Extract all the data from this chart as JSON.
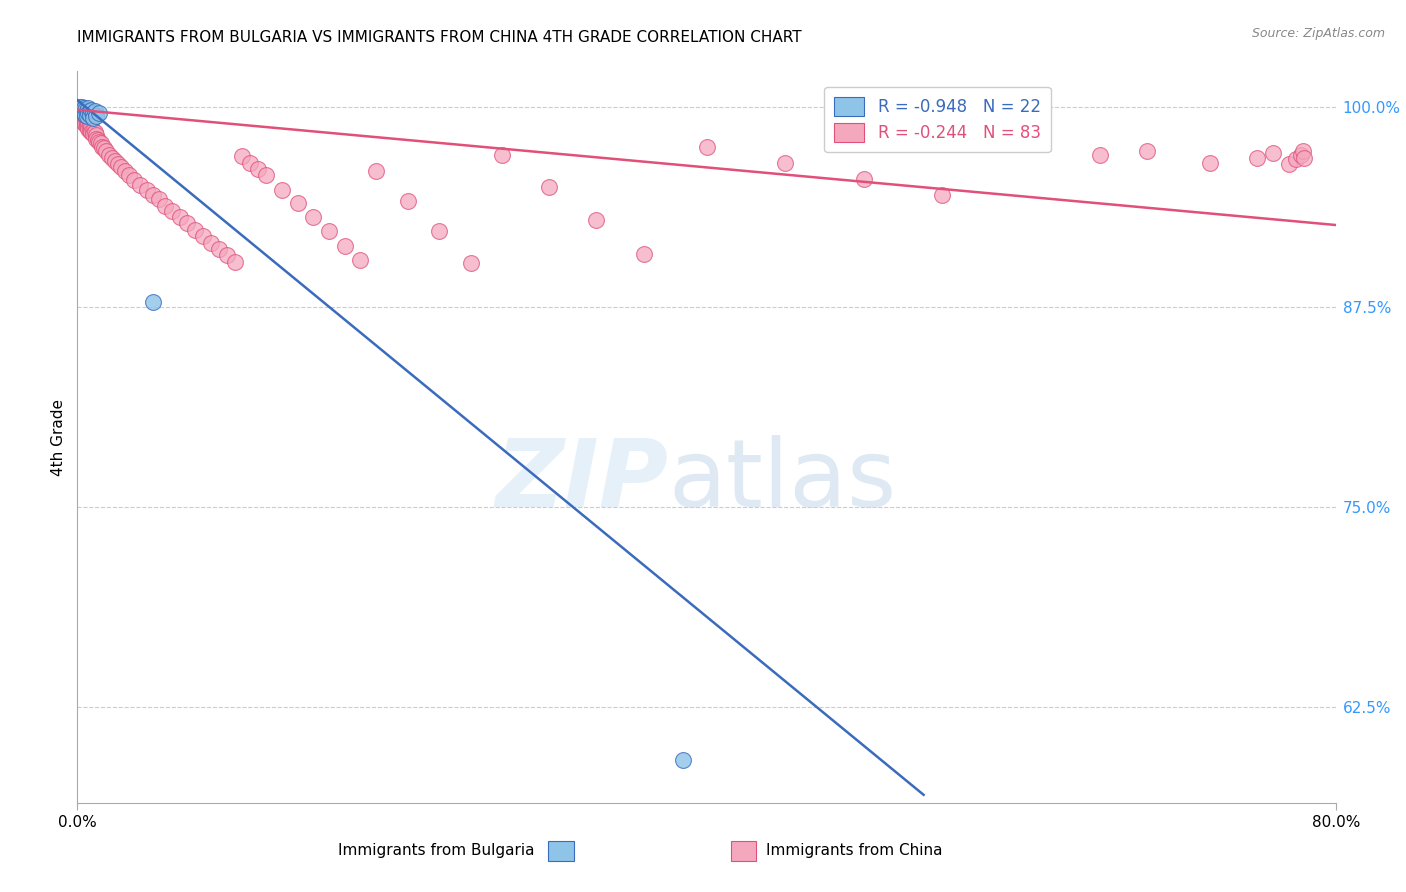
{
  "title": "IMMIGRANTS FROM BULGARIA VS IMMIGRANTS FROM CHINA 4TH GRADE CORRELATION CHART",
  "source": "Source: ZipAtlas.com",
  "ylabel": "4th Grade",
  "right_ytick_labels": [
    "100.0%",
    "87.5%",
    "75.0%",
    "62.5%"
  ],
  "right_ytick_values": [
    1.0,
    0.875,
    0.75,
    0.625
  ],
  "legend_blue_r": "R = -0.948",
  "legend_blue_n": "N = 22",
  "legend_pink_r": "R = -0.244",
  "legend_pink_n": "N = 83",
  "blue_scatter_color": "#8ec4e8",
  "pink_scatter_color": "#f4a8be",
  "blue_line_color": "#3a6bbc",
  "pink_line_color": "#e0507a",
  "xlim": [
    0.0,
    0.8
  ],
  "ylim": [
    0.565,
    1.022
  ],
  "blue_scatter_x": [
    0.001,
    0.002,
    0.003,
    0.003,
    0.004,
    0.004,
    0.005,
    0.005,
    0.006,
    0.006,
    0.007,
    0.007,
    0.008,
    0.008,
    0.009,
    0.01,
    0.01,
    0.011,
    0.012,
    0.014,
    0.048,
    0.385
  ],
  "blue_scatter_y": [
    1.0,
    0.998,
    1.0,
    0.997,
    0.999,
    0.996,
    0.998,
    0.995,
    0.997,
    0.994,
    0.999,
    0.996,
    0.997,
    0.995,
    0.998,
    0.996,
    0.993,
    0.997,
    0.994,
    0.996,
    0.878,
    0.592
  ],
  "pink_scatter_x": [
    0.001,
    0.002,
    0.002,
    0.003,
    0.003,
    0.004,
    0.004,
    0.005,
    0.005,
    0.006,
    0.006,
    0.007,
    0.007,
    0.008,
    0.008,
    0.009,
    0.009,
    0.01,
    0.01,
    0.011,
    0.012,
    0.012,
    0.013,
    0.014,
    0.015,
    0.016,
    0.017,
    0.018,
    0.02,
    0.022,
    0.024,
    0.026,
    0.028,
    0.03,
    0.033,
    0.036,
    0.04,
    0.044,
    0.048,
    0.052,
    0.056,
    0.06,
    0.065,
    0.07,
    0.075,
    0.08,
    0.085,
    0.09,
    0.095,
    0.1,
    0.105,
    0.11,
    0.115,
    0.12,
    0.13,
    0.14,
    0.15,
    0.16,
    0.17,
    0.18,
    0.19,
    0.21,
    0.23,
    0.25,
    0.27,
    0.3,
    0.33,
    0.36,
    0.4,
    0.45,
    0.5,
    0.55,
    0.6,
    0.65,
    0.68,
    0.72,
    0.75,
    0.76,
    0.77,
    0.775,
    0.778,
    0.779,
    0.78
  ],
  "pink_scatter_y": [
    0.996,
    0.997,
    0.994,
    0.995,
    0.992,
    0.993,
    0.99,
    0.991,
    0.989,
    0.99,
    0.988,
    0.989,
    0.986,
    0.988,
    0.985,
    0.987,
    0.984,
    0.985,
    0.983,
    0.984,
    0.982,
    0.98,
    0.979,
    0.978,
    0.977,
    0.975,
    0.974,
    0.972,
    0.97,
    0.968,
    0.966,
    0.964,
    0.962,
    0.96,
    0.957,
    0.954,
    0.951,
    0.948,
    0.945,
    0.942,
    0.938,
    0.935,
    0.931,
    0.927,
    0.923,
    0.919,
    0.915,
    0.911,
    0.907,
    0.903,
    0.969,
    0.965,
    0.961,
    0.957,
    0.948,
    0.94,
    0.931,
    0.922,
    0.913,
    0.904,
    0.96,
    0.941,
    0.922,
    0.902,
    0.97,
    0.95,
    0.929,
    0.908,
    0.975,
    0.965,
    0.955,
    0.945,
    0.98,
    0.97,
    0.972,
    0.965,
    0.968,
    0.971,
    0.964,
    0.967,
    0.97,
    0.972,
    0.968
  ],
  "blue_trendline_x": [
    0.0,
    0.538
  ],
  "blue_trendline_y": [
    1.004,
    0.57
  ],
  "pink_trendline_x": [
    0.0,
    0.8
  ],
  "pink_trendline_y": [
    0.998,
    0.926
  ]
}
